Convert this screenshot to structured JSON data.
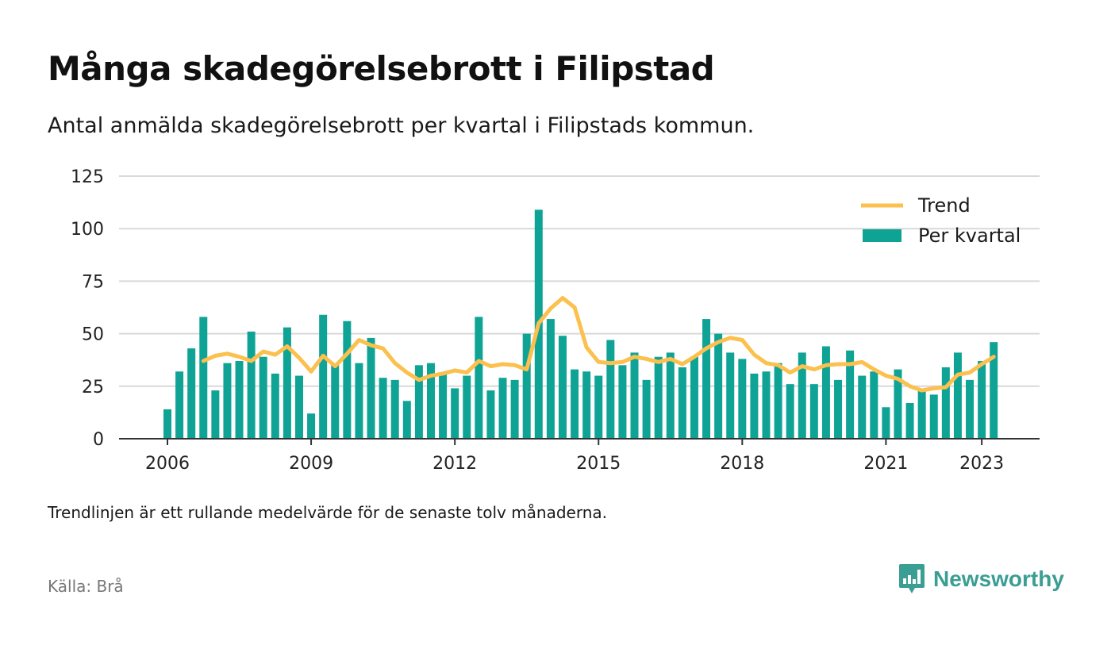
{
  "title": "Många skadegörelsebrott i Filipstad",
  "subtitle": "Antal anmälda skadegörelsebrott per kvartal i Filipstads kommun.",
  "footnote": "Trendlinjen är ett rullande medelvärde för de senaste tolv månaderna.",
  "source": "Källa: Brå",
  "brand": "Newsworthy",
  "colors": {
    "bar": "#0fa396",
    "trend": "#fbc04e",
    "grid": "#d9d9d9",
    "axis": "#333333",
    "brand": "#3a9e93"
  },
  "chart_data": {
    "type": "bar",
    "x_unit": "quarter",
    "start": "2006 Q1",
    "ylim": [
      0,
      125
    ],
    "yticks": [
      0,
      25,
      50,
      75,
      100,
      125
    ],
    "xticks": [
      "2006",
      "2009",
      "2012",
      "2015",
      "2018",
      "2021",
      "2023"
    ],
    "grid": true,
    "legend_position": "top-right",
    "series": [
      {
        "name": "Per kvartal",
        "type": "bar",
        "values": [
          14,
          32,
          43,
          58,
          23,
          36,
          37,
          51,
          39,
          31,
          53,
          30,
          12,
          59,
          35,
          56,
          36,
          48,
          29,
          28,
          18,
          35,
          36,
          31,
          24,
          30,
          58,
          23,
          29,
          28,
          50,
          109,
          57,
          49,
          33,
          32,
          30,
          47,
          35,
          41,
          28,
          39,
          41,
          34,
          39,
          57,
          50,
          41,
          38,
          31,
          32,
          36,
          26,
          41,
          26,
          44,
          28,
          42,
          30,
          32,
          15,
          33,
          17,
          23,
          21,
          34,
          41,
          28,
          37,
          46
        ]
      },
      {
        "name": "Trend",
        "type": "line",
        "values": [
          null,
          null,
          null,
          37,
          39.5,
          40.5,
          39,
          37,
          41.5,
          40,
          44,
          38.5,
          32,
          39.5,
          34.5,
          40.5,
          47,
          44.5,
          43,
          36,
          31.5,
          28,
          30,
          31,
          32.5,
          31.5,
          37,
          34.5,
          35.5,
          35,
          33,
          55,
          62,
          67,
          62.5,
          43.5,
          36.5,
          36,
          36.5,
          39,
          38,
          36.5,
          38,
          35.5,
          39,
          43,
          46,
          48,
          47,
          40,
          36,
          35,
          31.5,
          34.5,
          33,
          35,
          35.5,
          35.5,
          36.5,
          33,
          30,
          28.5,
          25,
          23,
          24,
          24.5,
          30.5,
          31.5,
          35.5,
          39
        ]
      }
    ]
  }
}
